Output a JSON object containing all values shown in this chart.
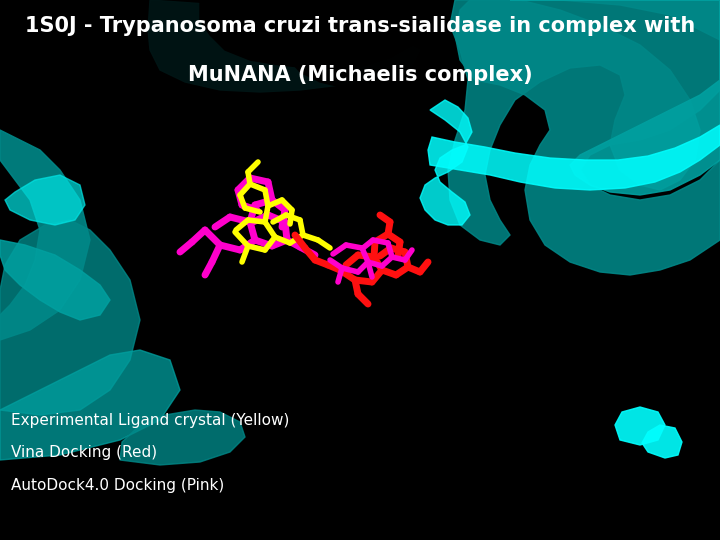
{
  "title_line1": "1S0J - Trypanosoma cruzi trans-sialidase in complex with",
  "title_line2": "MuNANA (Michaelis complex)",
  "legend_line1": "Experimental Ligand crystal (Yellow)",
  "legend_line2": "Vina Docking (Red)",
  "legend_line3": "AutoDock4.0 Docking (Pink)",
  "background_color": "#000000",
  "text_color": "#ffffff",
  "title_fontsize": 15,
  "legend_fontsize": 11,
  "teal_dark": "#007070",
  "teal_mid": "#008888",
  "teal_bright": "#00A0A0",
  "cyan_bright": "#00E5E5",
  "cyan_vivid": "#00FFFF"
}
